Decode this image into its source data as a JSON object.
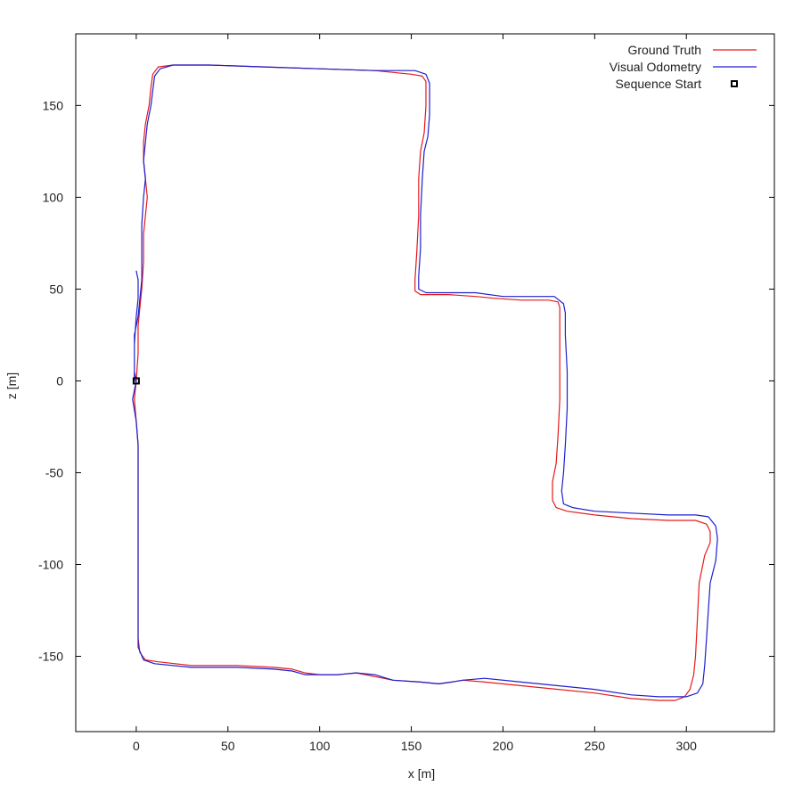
{
  "chart_data": {
    "type": "line",
    "xlabel": "x [m]",
    "ylabel": "z [m]",
    "xlim": [
      -33,
      348
    ],
    "ylim": [
      -191,
      189
    ],
    "xticks": [
      0,
      50,
      100,
      150,
      200,
      250,
      300
    ],
    "yticks": [
      150,
      100,
      50,
      0,
      -50,
      -100,
      -150
    ],
    "tick_labels": {
      "x": [
        "0",
        "50",
        "100",
        "150",
        "200",
        "250",
        "300"
      ],
      "y": [
        "150",
        "100",
        "50",
        "0",
        "-50",
        "-100",
        "-150"
      ]
    },
    "grid": false,
    "legend_position": "top-right",
    "series": [
      {
        "name": "Ground Truth",
        "color": "#e41a1c",
        "marker": "line",
        "points": [
          [
            0,
            0
          ],
          [
            -1,
            -10
          ],
          [
            0,
            -22
          ],
          [
            1,
            -35
          ],
          [
            1,
            -60
          ],
          [
            1,
            -90
          ],
          [
            1,
            -120
          ],
          [
            1,
            -140
          ],
          [
            2,
            -148
          ],
          [
            5,
            -152
          ],
          [
            12,
            -153
          ],
          [
            30,
            -155
          ],
          [
            55,
            -155
          ],
          [
            75,
            -156
          ],
          [
            85,
            -157
          ],
          [
            92,
            -159
          ],
          [
            100,
            -160
          ],
          [
            110,
            -160
          ],
          [
            120,
            -159
          ],
          [
            130,
            -161
          ],
          [
            140,
            -163
          ],
          [
            155,
            -164
          ],
          [
            165,
            -165
          ],
          [
            172,
            -164
          ],
          [
            178,
            -163
          ],
          [
            190,
            -164
          ],
          [
            210,
            -166
          ],
          [
            230,
            -168
          ],
          [
            250,
            -170
          ],
          [
            270,
            -173
          ],
          [
            285,
            -174
          ],
          [
            294,
            -174
          ],
          [
            299,
            -172
          ],
          [
            302,
            -168
          ],
          [
            304,
            -160
          ],
          [
            305,
            -150
          ],
          [
            306,
            -130
          ],
          [
            307,
            -110
          ],
          [
            310,
            -95
          ],
          [
            313,
            -88
          ],
          [
            313,
            -82
          ],
          [
            311,
            -78
          ],
          [
            305,
            -76
          ],
          [
            290,
            -76
          ],
          [
            270,
            -75
          ],
          [
            250,
            -73
          ],
          [
            235,
            -71
          ],
          [
            229,
            -69
          ],
          [
            227,
            -65
          ],
          [
            227,
            -55
          ],
          [
            229,
            -45
          ],
          [
            230,
            -30
          ],
          [
            231,
            -10
          ],
          [
            231,
            10
          ],
          [
            231,
            30
          ],
          [
            231,
            40
          ],
          [
            230,
            43
          ],
          [
            225,
            44
          ],
          [
            210,
            44
          ],
          [
            195,
            45
          ],
          [
            185,
            46
          ],
          [
            170,
            47
          ],
          [
            155,
            47
          ],
          [
            152,
            49
          ],
          [
            152,
            55
          ],
          [
            153,
            70
          ],
          [
            154,
            90
          ],
          [
            154,
            110
          ],
          [
            155,
            125
          ],
          [
            157,
            135
          ],
          [
            158,
            150
          ],
          [
            158,
            163
          ],
          [
            156,
            166
          ],
          [
            150,
            167
          ],
          [
            130,
            169
          ],
          [
            100,
            170
          ],
          [
            70,
            171
          ],
          [
            40,
            172
          ],
          [
            20,
            172
          ],
          [
            12,
            171
          ],
          [
            9,
            167
          ],
          [
            8,
            160
          ],
          [
            7,
            150
          ],
          [
            5,
            140
          ],
          [
            4,
            130
          ],
          [
            4,
            120
          ],
          [
            5,
            110
          ],
          [
            6,
            100
          ],
          [
            5,
            90
          ],
          [
            4,
            80
          ],
          [
            4,
            65
          ],
          [
            3,
            50
          ],
          [
            2,
            40
          ],
          [
            1,
            30
          ],
          [
            1,
            15
          ],
          [
            0,
            0
          ]
        ]
      },
      {
        "name": "Visual Odometry",
        "color": "#1f1fcf",
        "marker": "line",
        "points": [
          [
            0,
            0
          ],
          [
            -2,
            -10
          ],
          [
            0,
            -22
          ],
          [
            1,
            -35
          ],
          [
            1,
            -60
          ],
          [
            1,
            -90
          ],
          [
            1,
            -120
          ],
          [
            1,
            -145
          ],
          [
            4,
            -152
          ],
          [
            10,
            -154
          ],
          [
            30,
            -156
          ],
          [
            55,
            -156
          ],
          [
            75,
            -157
          ],
          [
            85,
            -158
          ],
          [
            92,
            -160
          ],
          [
            100,
            -160
          ],
          [
            110,
            -160
          ],
          [
            120,
            -159
          ],
          [
            130,
            -160
          ],
          [
            140,
            -163
          ],
          [
            155,
            -164
          ],
          [
            165,
            -165
          ],
          [
            172,
            -164
          ],
          [
            178,
            -163
          ],
          [
            190,
            -162
          ],
          [
            210,
            -164
          ],
          [
            230,
            -166
          ],
          [
            250,
            -168
          ],
          [
            270,
            -171
          ],
          [
            285,
            -172
          ],
          [
            300,
            -172
          ],
          [
            306,
            -170
          ],
          [
            309,
            -165
          ],
          [
            310,
            -155
          ],
          [
            311,
            -140
          ],
          [
            312,
            -125
          ],
          [
            313,
            -110
          ],
          [
            316,
            -98
          ],
          [
            317,
            -86
          ],
          [
            316,
            -79
          ],
          [
            312,
            -74
          ],
          [
            305,
            -73
          ],
          [
            290,
            -73
          ],
          [
            270,
            -72
          ],
          [
            250,
            -71
          ],
          [
            238,
            -69
          ],
          [
            233,
            -67
          ],
          [
            232,
            -60
          ],
          [
            233,
            -50
          ],
          [
            234,
            -35
          ],
          [
            235,
            -15
          ],
          [
            235,
            5
          ],
          [
            234,
            25
          ],
          [
            234,
            37
          ],
          [
            233,
            42
          ],
          [
            228,
            46
          ],
          [
            212,
            46
          ],
          [
            200,
            46
          ],
          [
            185,
            48
          ],
          [
            170,
            48
          ],
          [
            158,
            48
          ],
          [
            154,
            50
          ],
          [
            154,
            57
          ],
          [
            155,
            72
          ],
          [
            155,
            90
          ],
          [
            156,
            110
          ],
          [
            157,
            125
          ],
          [
            159,
            133
          ],
          [
            160,
            145
          ],
          [
            160,
            162
          ],
          [
            158,
            167
          ],
          [
            152,
            169
          ],
          [
            130,
            169
          ],
          [
            100,
            170
          ],
          [
            70,
            171
          ],
          [
            40,
            172
          ],
          [
            20,
            172
          ],
          [
            13,
            170
          ],
          [
            10,
            166
          ],
          [
            9,
            158
          ],
          [
            8,
            150
          ],
          [
            6,
            140
          ],
          [
            5,
            130
          ],
          [
            4,
            120
          ],
          [
            5,
            110
          ],
          [
            4,
            100
          ],
          [
            3,
            85
          ],
          [
            3,
            70
          ],
          [
            3,
            55
          ],
          [
            2,
            45
          ],
          [
            1,
            35
          ],
          [
            -1,
            25
          ],
          [
            -1,
            15
          ],
          [
            -1,
            5
          ],
          [
            0,
            0
          ],
          [
            -1,
            0
          ],
          [
            -1,
            20
          ],
          [
            0,
            35
          ],
          [
            1,
            45
          ],
          [
            1,
            55
          ],
          [
            0,
            60
          ]
        ]
      },
      {
        "name": "Sequence Start",
        "color": "#000000",
        "marker": "square",
        "points": [
          [
            0,
            0
          ]
        ]
      }
    ]
  }
}
